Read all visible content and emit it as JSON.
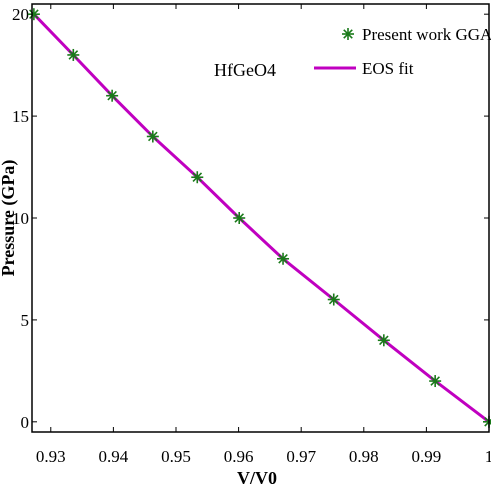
{
  "chart_data": {
    "type": "line",
    "annotation": "HfGeO4",
    "xlabel": "V/V0",
    "ylabel": "Pressure (GPa)",
    "xlim": [
      0.927,
      1.0
    ],
    "ylim": [
      -0.5,
      20.5
    ],
    "xticks": [
      0.93,
      0.94,
      0.95,
      0.96,
      0.97,
      0.98,
      0.99,
      1
    ],
    "xtick_labels": [
      "0.93",
      "0.94",
      "0.95",
      "0.96",
      "0.97",
      "0.98",
      "0.99",
      "1"
    ],
    "yticks": [
      0,
      5,
      10,
      15,
      20
    ],
    "ytick_labels": [
      "0",
      "5",
      "10",
      "15",
      "20"
    ],
    "grid": false,
    "legend_position": "top-right",
    "series": [
      {
        "name": "Present work GGA",
        "kind": "scatter",
        "marker": "asterisk",
        "color": "#1a7a1a",
        "x": [
          0.9273,
          0.9336,
          0.9398,
          0.9463,
          0.9534,
          0.9601,
          0.9671,
          0.9752,
          0.9832,
          0.9914,
          1.0
        ],
        "y": [
          20,
          18,
          16,
          14,
          12,
          10,
          8,
          6,
          4,
          2,
          0
        ]
      },
      {
        "name": "EOS fit",
        "kind": "line",
        "color": "#c000c0",
        "x": [
          0.9273,
          0.9336,
          0.9398,
          0.9463,
          0.9534,
          0.9601,
          0.9671,
          0.9752,
          0.9832,
          0.9914,
          1.0
        ],
        "y": [
          20,
          18,
          16,
          14,
          12,
          10,
          8,
          6,
          4,
          2,
          0
        ]
      }
    ]
  }
}
